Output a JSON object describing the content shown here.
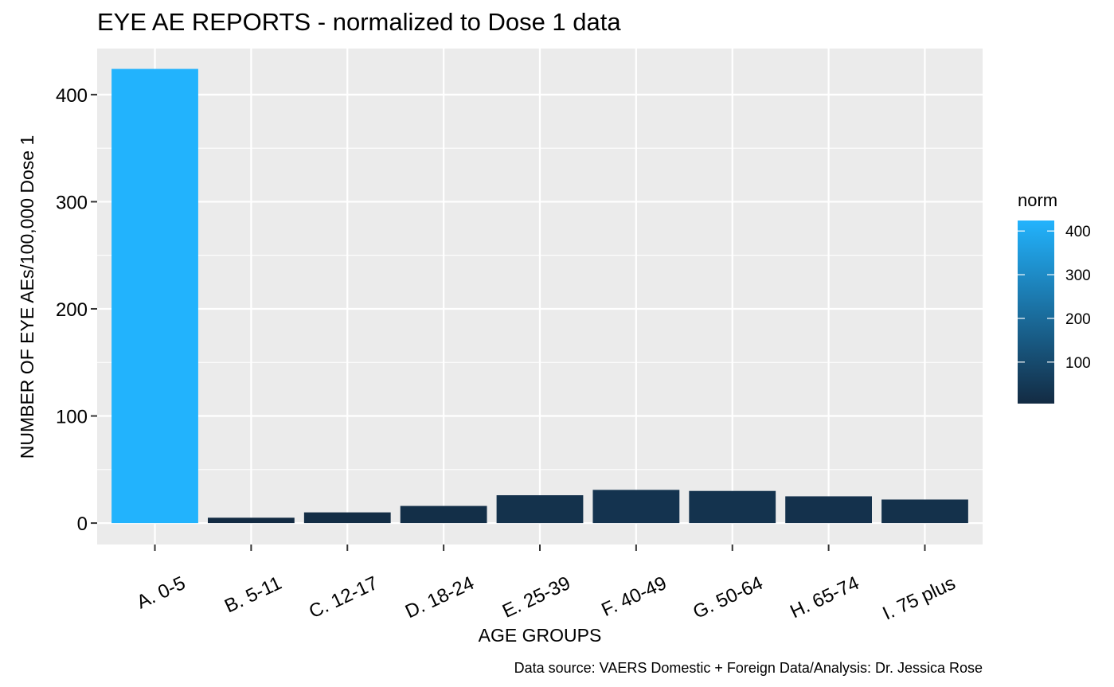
{
  "chart_data": {
    "type": "bar",
    "title": "EYE AE REPORTS - normalized to Dose 1 data",
    "xlabel": "AGE GROUPS",
    "ylabel": "NUMBER OF EYE AEs/100,000 Dose 1",
    "caption": "Data source: VAERS Domestic + Foreign Data/Analysis: Dr. Jessica Rose",
    "categories": [
      "A. 0-5",
      "B. 5-11",
      "C. 12-17",
      "D. 18-24",
      "E. 25-39",
      "F. 40-49",
      "G. 50-64",
      "H. 65-74",
      "I. 75 plus"
    ],
    "values": [
      424,
      5,
      10,
      16,
      26,
      31,
      30,
      25,
      22
    ],
    "ylim": [
      -20,
      443
    ],
    "yticks": [
      0,
      100,
      200,
      300,
      400
    ],
    "grid": true,
    "legend": {
      "title": "norm",
      "position": "right",
      "type": "colorbar",
      "range": [
        5,
        424
      ],
      "ticks": [
        100,
        200,
        300,
        400
      ],
      "color_low": "#132B43",
      "color_high": "#22B3FD"
    },
    "colors": {
      "panel_background": "#EBEBEB",
      "gridline": "#FFFFFF"
    }
  }
}
